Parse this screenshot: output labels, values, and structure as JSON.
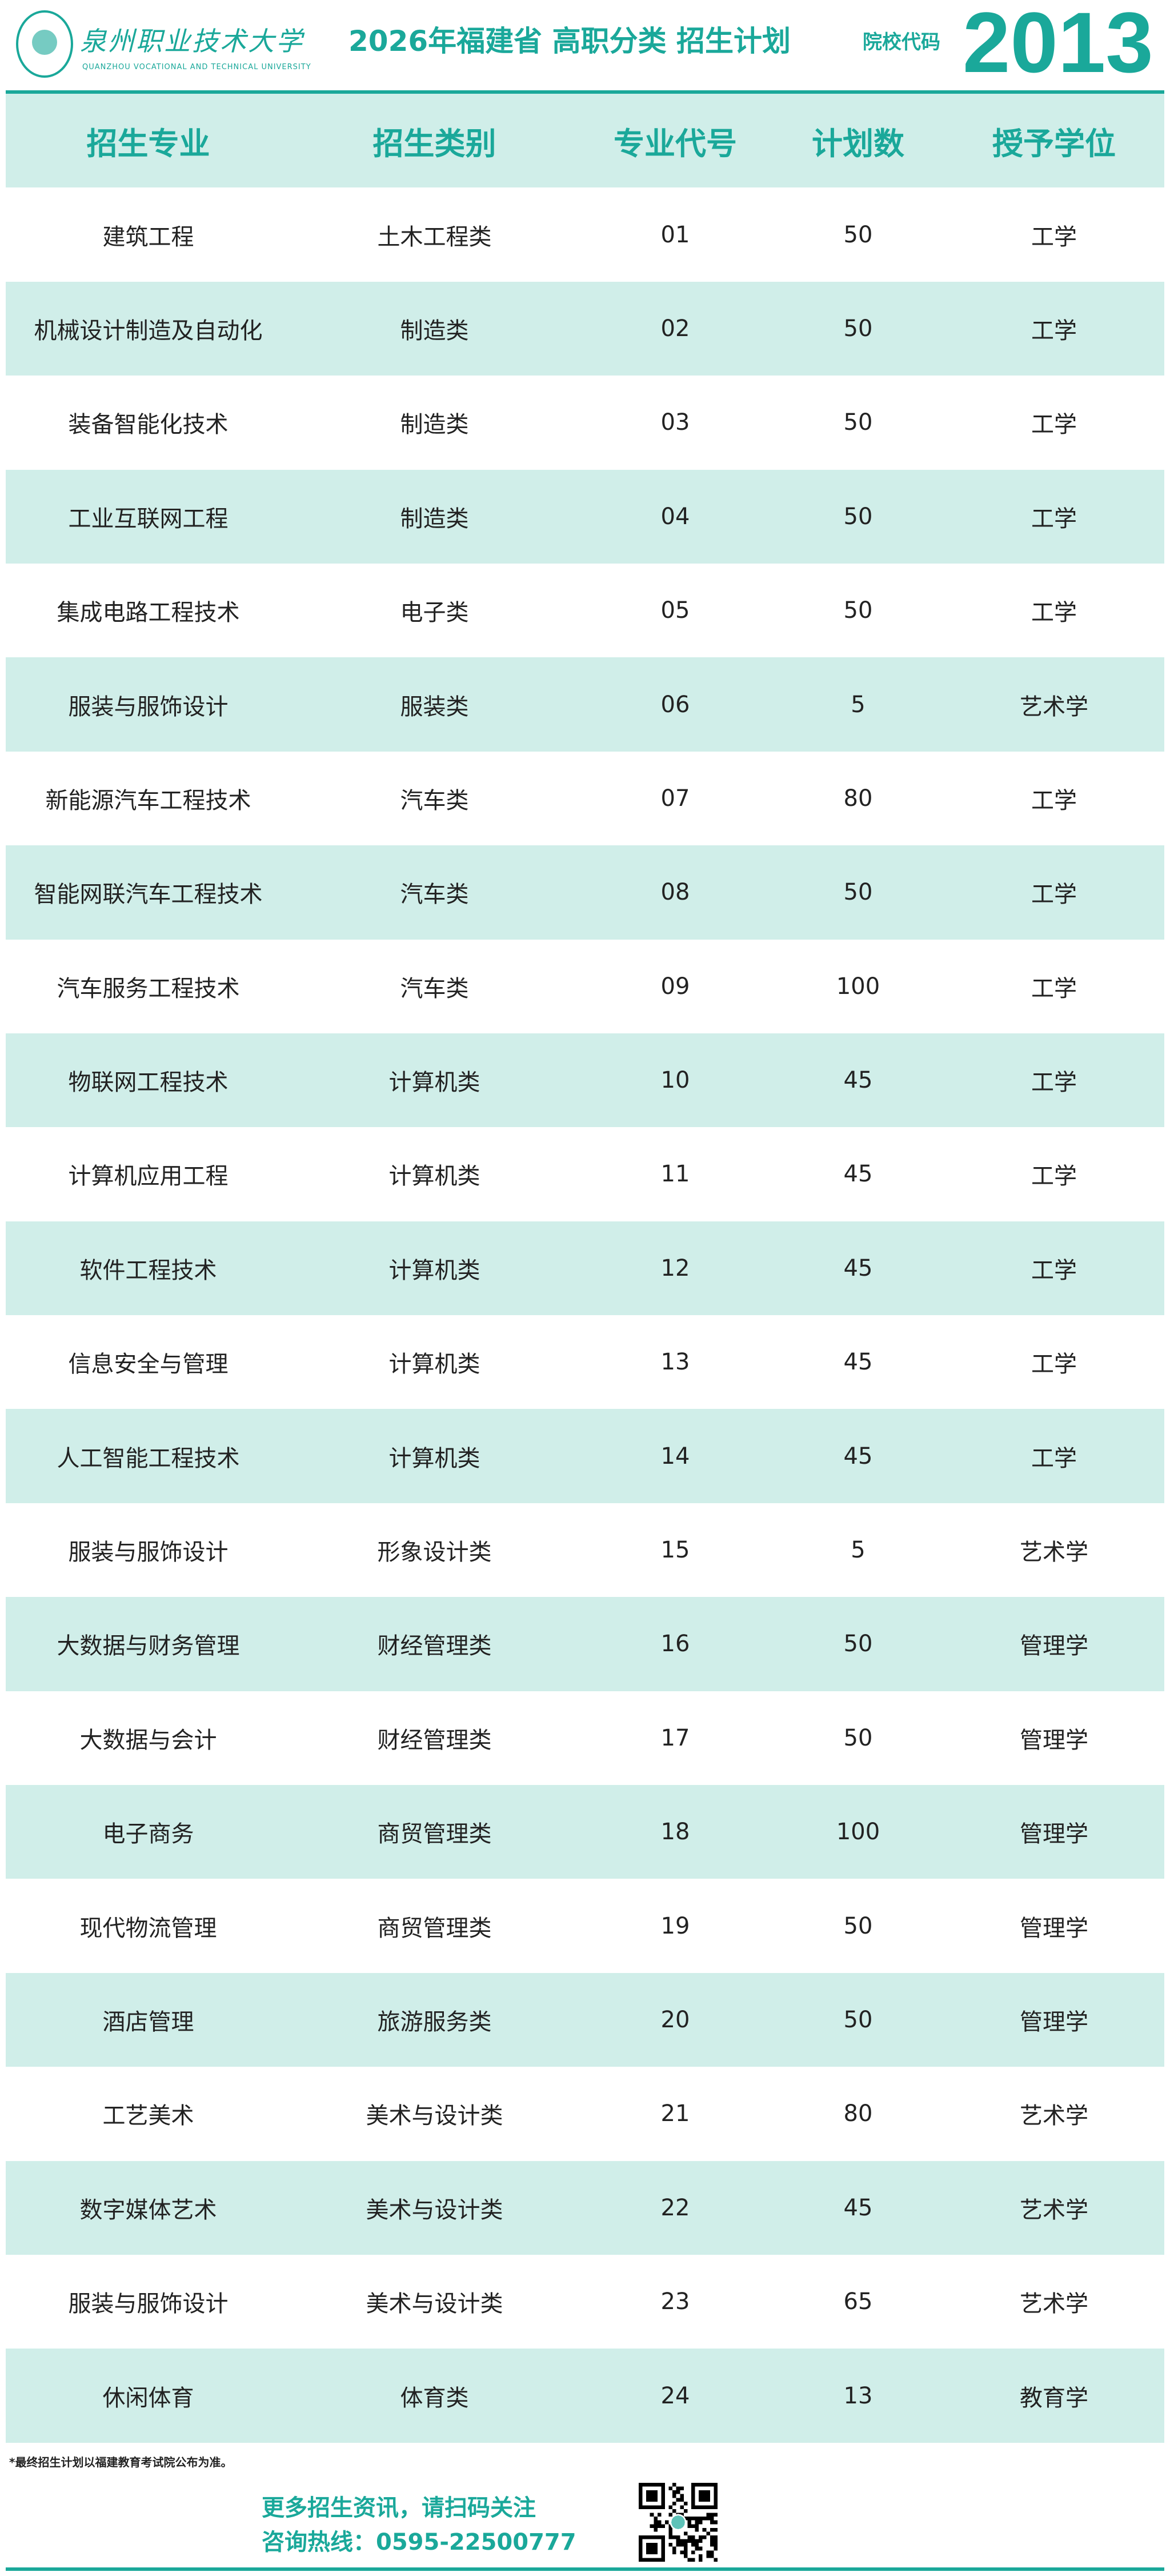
{
  "header": {
    "logo_name": "泉州职业技术大学",
    "logo_en": "QUANZHOU VOCATIONAL AND TECHNICAL UNIVERSITY",
    "title": "2026年福建省 高职分类 招生计划",
    "code_label": "院校代码",
    "code": "2013"
  },
  "colors": {
    "accent": "#1aa89a",
    "row_alt": "#d0eee9"
  },
  "table": {
    "columns": [
      "招生专业",
      "招生类别",
      "专业代号",
      "计划数",
      "授予学位"
    ],
    "rows": [
      [
        "建筑工程",
        "土木工程类",
        "01",
        "50",
        "工学"
      ],
      [
        "机械设计制造及自动化",
        "制造类",
        "02",
        "50",
        "工学"
      ],
      [
        "装备智能化技术",
        "制造类",
        "03",
        "50",
        "工学"
      ],
      [
        "工业互联网工程",
        "制造类",
        "04",
        "50",
        "工学"
      ],
      [
        "集成电路工程技术",
        "电子类",
        "05",
        "50",
        "工学"
      ],
      [
        "服装与服饰设计",
        "服装类",
        "06",
        "5",
        "艺术学"
      ],
      [
        "新能源汽车工程技术",
        "汽车类",
        "07",
        "80",
        "工学"
      ],
      [
        "智能网联汽车工程技术",
        "汽车类",
        "08",
        "50",
        "工学"
      ],
      [
        "汽车服务工程技术",
        "汽车类",
        "09",
        "100",
        "工学"
      ],
      [
        "物联网工程技术",
        "计算机类",
        "10",
        "45",
        "工学"
      ],
      [
        "计算机应用工程",
        "计算机类",
        "11",
        "45",
        "工学"
      ],
      [
        "软件工程技术",
        "计算机类",
        "12",
        "45",
        "工学"
      ],
      [
        "信息安全与管理",
        "计算机类",
        "13",
        "45",
        "工学"
      ],
      [
        "人工智能工程技术",
        "计算机类",
        "14",
        "45",
        "工学"
      ],
      [
        "服装与服饰设计",
        "形象设计类",
        "15",
        "5",
        "艺术学"
      ],
      [
        "大数据与财务管理",
        "财经管理类",
        "16",
        "50",
        "管理学"
      ],
      [
        "大数据与会计",
        "财经管理类",
        "17",
        "50",
        "管理学"
      ],
      [
        "电子商务",
        "商贸管理类",
        "18",
        "100",
        "管理学"
      ],
      [
        "现代物流管理",
        "商贸管理类",
        "19",
        "50",
        "管理学"
      ],
      [
        "酒店管理",
        "旅游服务类",
        "20",
        "50",
        "管理学"
      ],
      [
        "工艺美术",
        "美术与设计类",
        "21",
        "80",
        "艺术学"
      ],
      [
        "数字媒体艺术",
        "美术与设计类",
        "22",
        "45",
        "艺术学"
      ],
      [
        "服装与服饰设计",
        "美术与设计类",
        "23",
        "65",
        "艺术学"
      ],
      [
        "休闲体育",
        "体育类",
        "24",
        "13",
        "教育学"
      ]
    ]
  },
  "footer": {
    "note": "*最终招生计划以福建教育考试院公布为准。",
    "slogan": "更多招生资讯，请扫码关注",
    "hotline": "咨询热线：0595-22500777",
    "qr_icon": "qr-code"
  }
}
